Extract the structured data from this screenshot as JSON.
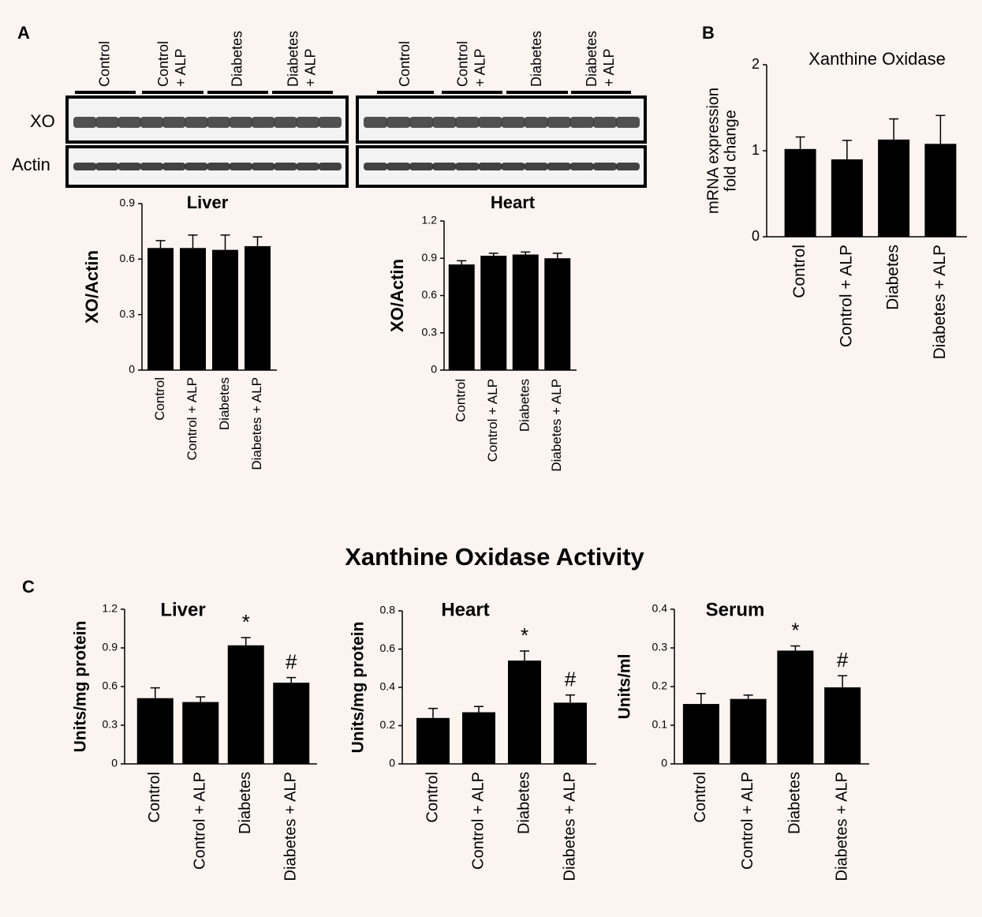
{
  "panel_labels": [
    "A",
    "B",
    "C"
  ],
  "section_title": "Xanthine Oxidase Activity",
  "blots": {
    "rows": [
      "XO",
      "Actin"
    ],
    "lanes": [
      [
        "Control"
      ],
      [
        "Control",
        "+ ALP"
      ],
      [
        "Diabetes"
      ],
      [
        "Diabetes",
        "+ ALP"
      ]
    ]
  },
  "chart_data": [
    {
      "type": "bar",
      "title": "Liver",
      "y_label": "XO/Actin",
      "categories": [
        "Control",
        "Control + ALP",
        "Diabetes",
        "Diabetes + ALP"
      ],
      "values": [
        0.66,
        0.66,
        0.65,
        0.67
      ],
      "errors": [
        0.04,
        0.07,
        0.08,
        0.05
      ],
      "color": "#000000",
      "ylim": [
        0,
        0.9
      ],
      "yticks": [
        0,
        0.3,
        0.6,
        0.9
      ]
    },
    {
      "type": "bar",
      "title": "Heart",
      "y_label": "XO/Actin",
      "categories": [
        "Control",
        "Control + ALP",
        "Diabetes",
        "Diabetes + ALP"
      ],
      "values": [
        0.85,
        0.92,
        0.93,
        0.9
      ],
      "errors": [
        0.03,
        0.02,
        0.02,
        0.04
      ],
      "color": "#000000",
      "ylim": [
        0,
        1.2
      ],
      "yticks": [
        0,
        0.3,
        0.6,
        0.9,
        1.2
      ]
    },
    {
      "type": "bar",
      "title": "Xanthine Oxidase",
      "y_label": [
        "mRNA expression",
        "fold change"
      ],
      "categories": [
        "Control",
        "Control + ALP",
        "Diabetes",
        "Diabetes + ALP"
      ],
      "values": [
        1.02,
        0.9,
        1.13,
        1.08
      ],
      "errors": [
        0.14,
        0.22,
        0.24,
        0.33
      ],
      "color": "#000000",
      "ylim": [
        0,
        2
      ],
      "yticks": [
        0,
        1,
        2
      ]
    },
    {
      "type": "bar",
      "title": "Liver",
      "y_label": "Units/mg protein",
      "categories": [
        "Control",
        "Control + ALP",
        "Diabetes",
        "Diabetes + ALP"
      ],
      "values": [
        0.51,
        0.48,
        0.92,
        0.63
      ],
      "errors": [
        0.08,
        0.04,
        0.06,
        0.04
      ],
      "markers": [
        null,
        null,
        "*",
        "#"
      ],
      "color": "#000000",
      "ylim": [
        0,
        1.2
      ],
      "yticks": [
        0,
        0.3,
        0.6,
        0.9,
        1.2
      ]
    },
    {
      "type": "bar",
      "title": "Heart",
      "y_label": "Units/mg protein",
      "categories": [
        "Control",
        "Control + ALP",
        "Diabetes",
        "Diabetes + ALP"
      ],
      "values": [
        0.24,
        0.27,
        0.54,
        0.32
      ],
      "errors": [
        0.05,
        0.03,
        0.05,
        0.04
      ],
      "markers": [
        null,
        null,
        "*",
        "#"
      ],
      "color": "#000000",
      "ylim": [
        0,
        0.8
      ],
      "yticks": [
        0,
        0.2,
        0.4,
        0.6,
        0.8
      ]
    },
    {
      "type": "bar",
      "title": "Serum",
      "y_label": "Units/ml",
      "categories": [
        "Control",
        "Control + ALP",
        "Diabetes",
        "Diabetes + ALP"
      ],
      "values": [
        0.155,
        0.168,
        0.293,
        0.198
      ],
      "errors": [
        0.027,
        0.01,
        0.012,
        0.03
      ],
      "markers": [
        null,
        null,
        "*",
        "#"
      ],
      "color": "#000000",
      "ylim": [
        0,
        0.4
      ],
      "yticks": [
        0,
        0.1,
        0.2,
        0.3,
        0.4
      ]
    }
  ]
}
